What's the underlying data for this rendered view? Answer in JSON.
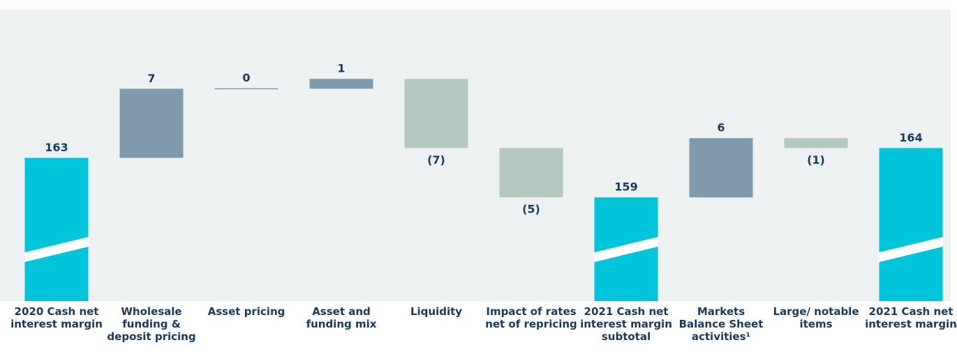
{
  "chart_data": {
    "type": "waterfall",
    "categories": [
      "2020 Cash net interest margin",
      "Wholesale funding & deposit pricing",
      "Asset pricing",
      "Asset and funding mix",
      "Liquidity",
      "Impact of rates net of repricing",
      "2021 Cash net interest margin subtotal",
      "Markets Balance Sheet activities¹",
      "Large/ notable items",
      "2021 Cash net interest margin"
    ],
    "values": [
      163,
      7,
      0,
      1,
      -7,
      -5,
      159,
      6,
      -1,
      164
    ],
    "value_labels": [
      "163",
      "7",
      "0",
      "1",
      "(7)",
      "(5)",
      "159",
      "6",
      "(1)",
      "164"
    ],
    "colors": [
      "#00c4d9",
      "#7f9bad",
      "#7f9bad",
      "#7f9bad",
      "#b5c9c0",
      "#b5c9c0",
      "#00c4d9",
      "#7f9bad",
      "#b5c9c0",
      "#00c4d9"
    ],
    "ylim": [
      148.5,
      178
    ],
    "axis_break": true
  }
}
